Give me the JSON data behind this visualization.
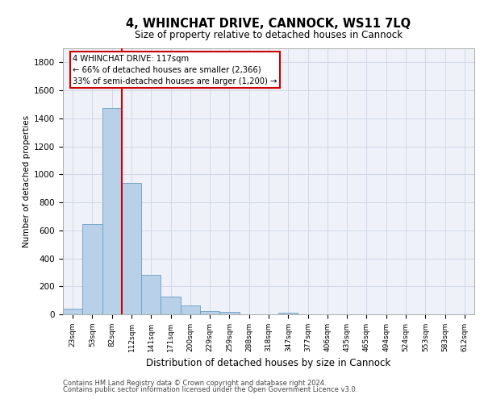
{
  "title": "4, WHINCHAT DRIVE, CANNOCK, WS11 7LQ",
  "subtitle": "Size of property relative to detached houses in Cannock",
  "xlabel": "Distribution of detached houses by size in Cannock",
  "ylabel": "Number of detached properties",
  "bar_labels": [
    "23sqm",
    "53sqm",
    "82sqm",
    "112sqm",
    "141sqm",
    "171sqm",
    "200sqm",
    "229sqm",
    "259sqm",
    "288sqm",
    "318sqm",
    "347sqm",
    "377sqm",
    "406sqm",
    "435sqm",
    "465sqm",
    "494sqm",
    "524sqm",
    "553sqm",
    "583sqm",
    "612sqm"
  ],
  "bar_values": [
    40,
    645,
    1475,
    940,
    285,
    125,
    65,
    22,
    15,
    0,
    0,
    12,
    0,
    0,
    0,
    0,
    0,
    0,
    0,
    0,
    0
  ],
  "bar_color": "#b8d0e8",
  "bar_edge_color": "#6a9fc0",
  "vline_color": "#cc0000",
  "vline_x_index": 2.5,
  "annotation_text_line1": "4 WHINCHAT DRIVE: 117sqm",
  "annotation_text_line2": "← 66% of detached houses are smaller (2,366)",
  "annotation_text_line3": "33% of semi-detached houses are larger (1,200) →",
  "annotation_box_color": "#ffffff",
  "annotation_box_edge": "#cc0000",
  "ylim": [
    0,
    1900
  ],
  "yticks": [
    0,
    200,
    400,
    600,
    800,
    1000,
    1200,
    1400,
    1600,
    1800
  ],
  "grid_color": "#d0d8e8",
  "bg_color": "#eef2f8",
  "footer1": "Contains HM Land Registry data © Crown copyright and database right 2024.",
  "footer2": "Contains public sector information licensed under the Open Government Licence v3.0."
}
